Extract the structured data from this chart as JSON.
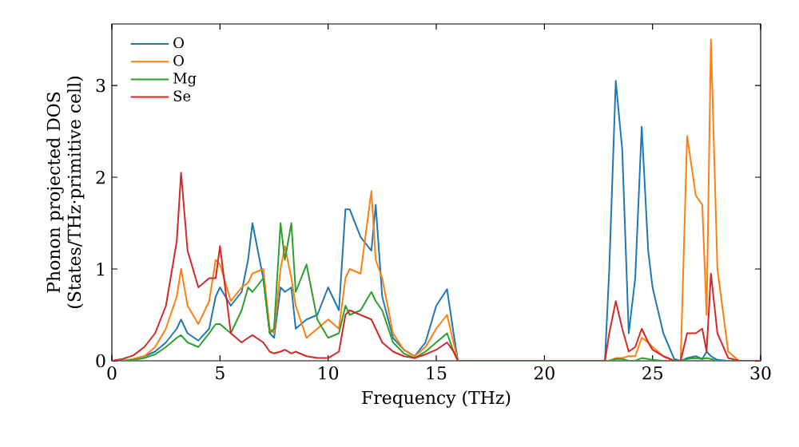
{
  "chart_data": {
    "type": "line",
    "xlabel": "Frequency (THz)",
    "ylabel": "Phonon projected DOS\n(States/THz·primitive cell)",
    "x": [
      0,
      0.5,
      1,
      1.5,
      2,
      2.5,
      3,
      3.2,
      3.5,
      4,
      4.5,
      4.8,
      5,
      5.5,
      6,
      6.3,
      6.5,
      7,
      7.3,
      7.5,
      7.8,
      8,
      8.3,
      8.5,
      9,
      9.5,
      10,
      10.5,
      10.8,
      11,
      11.5,
      12,
      12.2,
      12.5,
      13,
      13.5,
      14,
      14.5,
      15,
      15.5,
      15.8,
      16,
      17,
      20,
      22,
      22.8,
      23,
      23.3,
      23.6,
      23.9,
      24.2,
      24.5,
      24.8,
      25,
      25.5,
      26,
      26.3,
      26.6,
      27,
      27.3,
      27.5,
      27.7,
      28,
      28.5,
      29,
      30
    ],
    "series": [
      {
        "name": "O",
        "color": "#1f77b4",
        "values": [
          null,
          null,
          0.02,
          0.05,
          0.1,
          0.2,
          0.35,
          0.45,
          0.3,
          0.22,
          0.35,
          0.7,
          0.8,
          0.6,
          0.75,
          1.1,
          1.5,
          0.9,
          0.3,
          0.25,
          0.8,
          0.75,
          0.8,
          0.35,
          0.45,
          0.5,
          0.8,
          0.55,
          1.65,
          1.65,
          1.35,
          1.2,
          1.7,
          0.7,
          0.25,
          0.12,
          0.05,
          0.2,
          0.6,
          0.78,
          0.3,
          0,
          0,
          0,
          0,
          0,
          1.0,
          3.05,
          2.3,
          0.3,
          0.9,
          2.55,
          1.2,
          0.8,
          0.3,
          0.02,
          0,
          0.03,
          0.05,
          0.02,
          0.1,
          0.05,
          0.01,
          0,
          0,
          0
        ]
      },
      {
        "name": "O",
        "color": "#ff7f0e",
        "values": [
          0,
          0,
          0.02,
          0.05,
          0.15,
          0.35,
          0.7,
          1.0,
          0.6,
          0.4,
          0.65,
          1.1,
          1.05,
          0.65,
          0.8,
          0.85,
          0.95,
          1.0,
          0.35,
          0.3,
          1.0,
          1.25,
          0.9,
          0.6,
          0.25,
          0.35,
          0.45,
          0.35,
          0.9,
          1.0,
          0.95,
          1.85,
          1.1,
          0.9,
          0.3,
          0.12,
          0.05,
          0.15,
          0.35,
          0.5,
          0.2,
          0,
          0,
          0,
          0,
          0,
          0,
          0.03,
          0.03,
          0.05,
          0.05,
          0.25,
          0.2,
          0.15,
          0.05,
          0,
          0,
          2.45,
          1.8,
          1.7,
          0.5,
          3.5,
          1.0,
          0.1,
          0,
          0
        ]
      },
      {
        "name": "Mg",
        "color": "#2ca02c",
        "values": [
          0,
          0,
          0.01,
          0.03,
          0.07,
          0.15,
          0.25,
          0.28,
          0.2,
          0.15,
          0.3,
          0.4,
          0.4,
          0.3,
          0.55,
          0.8,
          0.75,
          0.9,
          0.3,
          0.35,
          1.5,
          1.1,
          1.5,
          0.75,
          1.05,
          0.45,
          0.25,
          0.3,
          0.6,
          0.5,
          0.55,
          0.75,
          0.65,
          0.55,
          0.2,
          0.08,
          0.03,
          0.1,
          0.2,
          0.3,
          0.1,
          0,
          0,
          0,
          0,
          0,
          0,
          0.02,
          0.02,
          0,
          0,
          0.03,
          0.02,
          0.01,
          0,
          0,
          0,
          0.02,
          0.03,
          0.02,
          0.03,
          0.02,
          0,
          0,
          0,
          0
        ]
      },
      {
        "name": "Se",
        "color": "#d62728",
        "values": [
          0,
          0.02,
          0.06,
          0.15,
          0.3,
          0.6,
          1.3,
          2.05,
          1.2,
          0.8,
          0.9,
          0.9,
          1.25,
          0.3,
          0.2,
          0.25,
          0.28,
          0.2,
          0.1,
          0.08,
          0.1,
          0.12,
          0.08,
          0.1,
          0.05,
          0.03,
          0.03,
          0.1,
          0.5,
          0.55,
          0.5,
          0.45,
          0.35,
          0.2,
          0.1,
          0.05,
          0.03,
          0.07,
          0.12,
          0.2,
          0.1,
          0,
          0,
          0,
          0,
          0,
          0.3,
          0.65,
          0.35,
          0.1,
          0.15,
          0.35,
          0.2,
          0.12,
          0.05,
          0,
          0,
          0.3,
          0.3,
          0.35,
          0.1,
          0.95,
          0.3,
          0.03,
          0,
          0
        ]
      }
    ],
    "xlim": [
      0,
      30
    ],
    "ylim": [
      0,
      3.67
    ],
    "xticks": [
      0,
      5,
      10,
      15,
      20,
      25,
      30
    ],
    "yticks": [
      0,
      1,
      2,
      3
    ],
    "legend": "top left",
    "grid": false,
    "marker": "none",
    "line_style": "solid"
  }
}
